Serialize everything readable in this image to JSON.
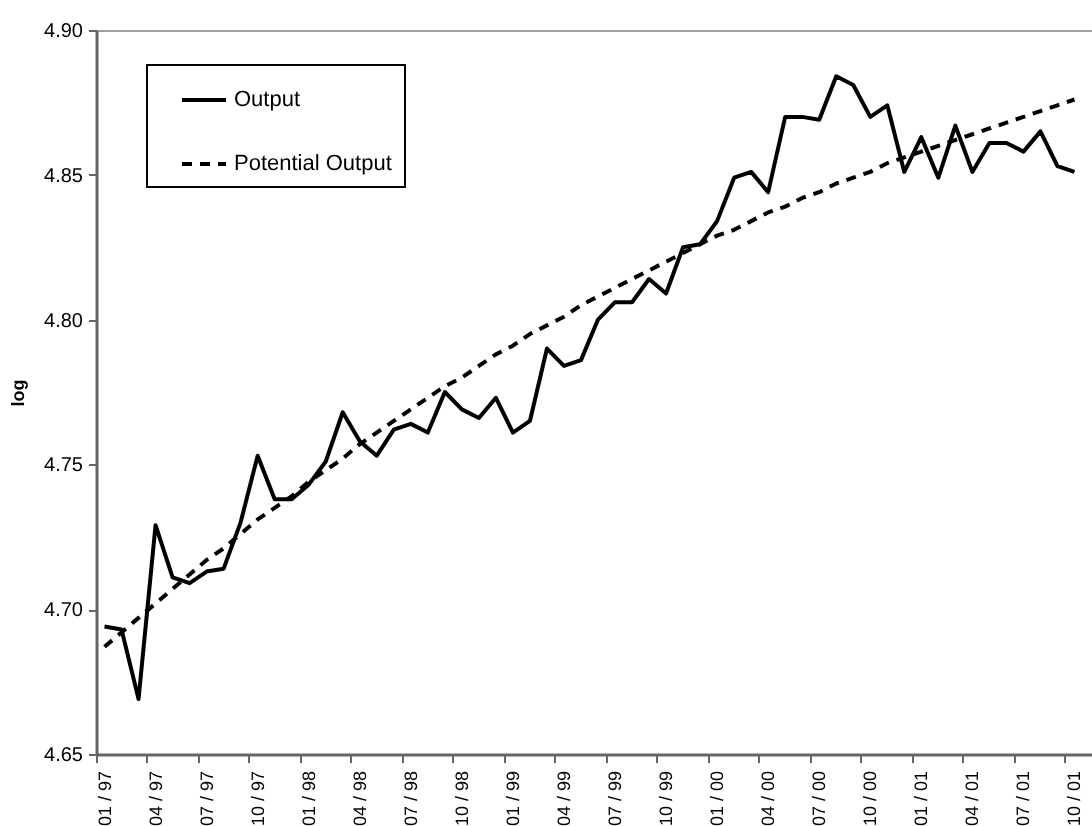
{
  "chart_data": {
    "type": "line",
    "ylabel": "log",
    "categories": [
      "01 / 97",
      null,
      null,
      "04 / 97",
      null,
      null,
      "07 / 97",
      null,
      null,
      "10 / 97",
      null,
      null,
      "01 / 98",
      null,
      null,
      "04 / 98",
      null,
      null,
      "07 / 98",
      null,
      null,
      "10 / 98",
      null,
      null,
      "01 / 99",
      null,
      null,
      "04 / 99",
      null,
      null,
      "07 / 99",
      null,
      null,
      "10 / 99",
      null,
      null,
      "01 / 00",
      null,
      null,
      "04 / 00",
      null,
      null,
      "07 / 00",
      null,
      null,
      "10 / 00",
      null,
      null,
      "01 / 01",
      null,
      null,
      "04 / 01",
      null,
      null,
      "07 / 01",
      null,
      null,
      "10 / 01"
    ],
    "series": [
      {
        "name": "Output",
        "color": "#000000",
        "line_style": "solid",
        "values": [
          4.694,
          4.693,
          4.669,
          4.729,
          4.711,
          4.709,
          4.713,
          4.714,
          4.73,
          4.753,
          4.738,
          4.738,
          4.743,
          4.751,
          4.768,
          4.758,
          4.753,
          4.762,
          4.764,
          4.761,
          4.775,
          4.769,
          4.766,
          4.773,
          4.761,
          4.765,
          4.79,
          4.784,
          4.786,
          4.8,
          4.806,
          4.806,
          4.814,
          4.809,
          4.825,
          4.826,
          4.834,
          4.849,
          4.851,
          4.844,
          4.87,
          4.87,
          4.869,
          4.884,
          4.881,
          4.87,
          4.874,
          4.851,
          4.863,
          4.849,
          4.867,
          4.851,
          4.861,
          4.861,
          4.858,
          4.865,
          4.853,
          4.851
        ]
      },
      {
        "name": "Potential Output",
        "color": "#000000",
        "line_style": "dashed",
        "values": [
          4.687,
          4.692,
          4.697,
          4.702,
          4.707,
          4.712,
          4.717,
          4.721,
          4.726,
          4.731,
          4.735,
          4.739,
          4.744,
          4.748,
          4.752,
          4.757,
          4.761,
          4.765,
          4.769,
          4.773,
          4.777,
          4.78,
          4.784,
          4.788,
          4.791,
          4.795,
          4.798,
          4.801,
          4.805,
          4.808,
          4.811,
          4.814,
          4.817,
          4.82,
          4.823,
          4.826,
          4.829,
          4.831,
          4.834,
          4.837,
          4.839,
          4.842,
          4.844,
          4.847,
          4.849,
          4.851,
          4.854,
          4.856,
          4.858,
          4.86,
          4.862,
          4.864,
          4.866,
          4.868,
          4.87,
          4.872,
          4.874,
          4.876
        ]
      }
    ],
    "ylim": [
      4.65,
      4.9
    ],
    "yticks": [
      4.65,
      {
        "value": 4.7,
        "label": "4.70"
      },
      4.75,
      {
        "value": 4.8,
        "label": "4.80"
      },
      4.85,
      {
        "value": 4.9,
        "label": "4.90"
      }
    ],
    "legend": "top left"
  }
}
